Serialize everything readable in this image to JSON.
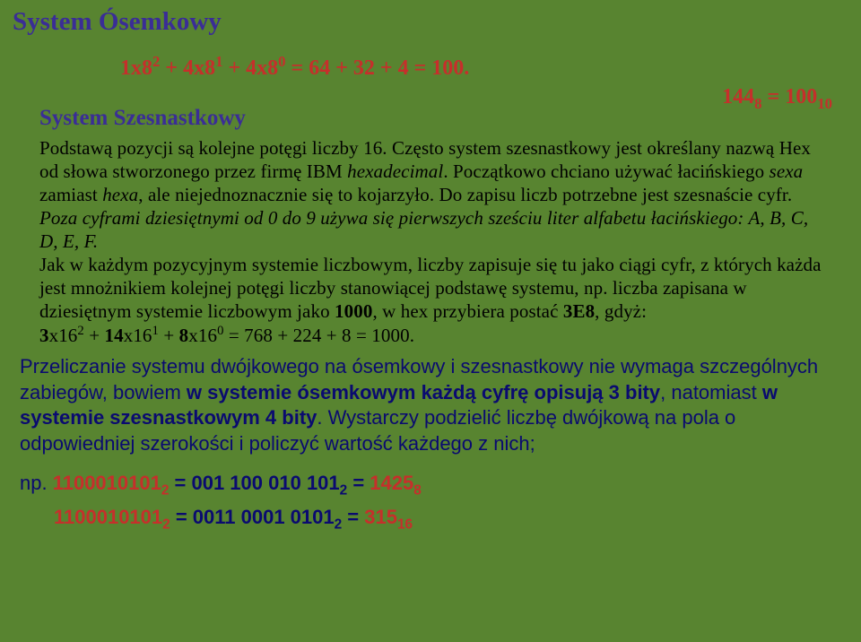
{
  "title_main": "System Ósemkowy",
  "formula_main": "1x8² + 4x8¹ + 4x8⁰ = 64 + 32 + 4 = 100.",
  "right_label": "144₈ = 100₁₀",
  "title_sub": "System Szesnastkowy",
  "para_text": "Podstawą pozycji są kolejne potęgi liczby 16. Często system szesnastkowy jest określany nazwą Hex od słowa stworzonego przez firmę IBM hexadecimal. Początkowo chciano używać łacińskiego sexa zamiast hexa, ale niejednoznacznie się to kojarzyło. Do zapisu liczb potrzebne jest szesnaście cyfr. Poza cyframi dziesiętnymi od 0 do 9 używa się pierwszych sześciu liter alfabetu łacińskiego: A, B, C, D, E, F.",
  "para_text2": "Jak w każdym pozycyjnym systemie liczbowym, liczby zapisuje się tu jako ciągi cyfr, z których każda jest mnożnikiem kolejnej potęgi liczby stanowiącej podstawę systemu, np. liczba zapisana w dziesiętnym systemie liczbowym jako ",
  "bold_1000": "1000",
  "para_text3": ", w hex przybiera postać ",
  "bold_3e8": "3E8",
  "para_text4": ", gdyż:",
  "hex_formula_prefix": "3",
  "hex_formula_rest": "x16² + ",
  "hex_formula_14": "14",
  "hex_formula_mid": "x16¹ + ",
  "hex_formula_8": "8",
  "hex_formula_end": "x16⁰ = 768 + 224 + 8 = 1000.",
  "blue_part1": "Przeliczanie systemu dwójkowego na ósemkowy i szesnastkowy nie wymaga szczególnych zabiegów, bowiem ",
  "blue_bold1": "w systemie ósemkowym każdą cyfrę opisują 3 bity",
  "blue_part2": ", natomiast ",
  "blue_bold2": "w systemie szesnastkowym 4 bity",
  "blue_part3": ". Wystarczy podzielić liczbę dwójkową na pola o odpowiedniej szerokości i policzyć wartość każdego z nich;",
  "np_label": "np. ",
  "np_binary": "1100010101",
  "np_sub2": "2",
  "np_equals": " = ",
  "np_groups": "001  100  010  101",
  "np_result": "1425",
  "np_sub8": "8",
  "last_binary": "1100010101",
  "last_sub2": "2",
  "last_equals": " = ",
  "last_groups": "0011  0001  0101",
  "last_result": "315",
  "last_sub16": "16",
  "colors": {
    "background": "#588430",
    "title": "#3a2d96",
    "red": "#c62f2b",
    "blue": "#0a0a70",
    "black": "#000000"
  }
}
